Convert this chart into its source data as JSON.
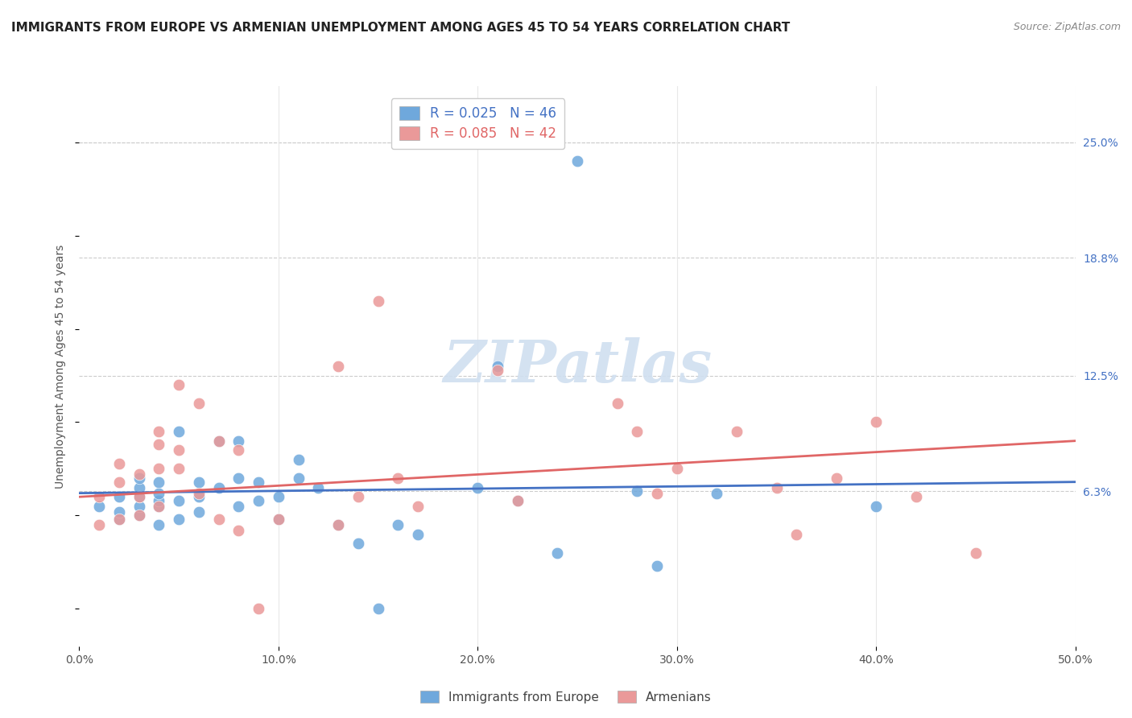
{
  "title": "IMMIGRANTS FROM EUROPE VS ARMENIAN UNEMPLOYMENT AMONG AGES 45 TO 54 YEARS CORRELATION CHART",
  "source": "Source: ZipAtlas.com",
  "ylabel": "Unemployment Among Ages 45 to 54 years",
  "xlim": [
    0.0,
    0.5
  ],
  "ylim": [
    -0.02,
    0.28
  ],
  "xtick_labels": [
    "0.0%",
    "10.0%",
    "20.0%",
    "30.0%",
    "40.0%",
    "50.0%"
  ],
  "xtick_vals": [
    0.0,
    0.1,
    0.2,
    0.3,
    0.4,
    0.5
  ],
  "ytick_labels_right": [
    "6.3%",
    "12.5%",
    "18.8%",
    "25.0%"
  ],
  "ytick_vals_right": [
    0.063,
    0.125,
    0.188,
    0.25
  ],
  "grid_color": "#cccccc",
  "background_color": "#ffffff",
  "watermark": "ZIPatlas",
  "watermark_color": "#d0dff0",
  "blue_color": "#6fa8dc",
  "pink_color": "#ea9999",
  "blue_line_color": "#4472c4",
  "pink_line_color": "#e06666",
  "legend_blue_r": "0.025",
  "legend_blue_n": "46",
  "legend_pink_r": "0.085",
  "legend_pink_n": "42",
  "blue_scatter_x": [
    0.01,
    0.02,
    0.02,
    0.02,
    0.03,
    0.03,
    0.03,
    0.03,
    0.03,
    0.04,
    0.04,
    0.04,
    0.04,
    0.04,
    0.05,
    0.05,
    0.05,
    0.06,
    0.06,
    0.06,
    0.07,
    0.07,
    0.08,
    0.08,
    0.08,
    0.09,
    0.09,
    0.1,
    0.1,
    0.11,
    0.11,
    0.12,
    0.13,
    0.14,
    0.15,
    0.16,
    0.17,
    0.2,
    0.21,
    0.22,
    0.24,
    0.28,
    0.29,
    0.32,
    0.4,
    0.25
  ],
  "blue_scatter_y": [
    0.055,
    0.048,
    0.052,
    0.06,
    0.05,
    0.055,
    0.06,
    0.065,
    0.07,
    0.045,
    0.055,
    0.058,
    0.062,
    0.068,
    0.048,
    0.058,
    0.095,
    0.052,
    0.06,
    0.068,
    0.09,
    0.065,
    0.055,
    0.07,
    0.09,
    0.058,
    0.068,
    0.06,
    0.048,
    0.07,
    0.08,
    0.065,
    0.045,
    0.035,
    0.0,
    0.045,
    0.04,
    0.065,
    0.13,
    0.058,
    0.03,
    0.063,
    0.023,
    0.062,
    0.055,
    0.24
  ],
  "pink_scatter_x": [
    0.01,
    0.01,
    0.02,
    0.02,
    0.02,
    0.03,
    0.03,
    0.03,
    0.04,
    0.04,
    0.04,
    0.04,
    0.05,
    0.05,
    0.05,
    0.06,
    0.06,
    0.07,
    0.07,
    0.08,
    0.08,
    0.09,
    0.1,
    0.13,
    0.13,
    0.14,
    0.15,
    0.16,
    0.17,
    0.21,
    0.22,
    0.27,
    0.28,
    0.29,
    0.3,
    0.33,
    0.35,
    0.36,
    0.38,
    0.4,
    0.42,
    0.45
  ],
  "pink_scatter_y": [
    0.045,
    0.06,
    0.048,
    0.068,
    0.078,
    0.05,
    0.06,
    0.072,
    0.055,
    0.075,
    0.088,
    0.095,
    0.075,
    0.085,
    0.12,
    0.062,
    0.11,
    0.048,
    0.09,
    0.042,
    0.085,
    0.0,
    0.048,
    0.13,
    0.045,
    0.06,
    0.165,
    0.07,
    0.055,
    0.128,
    0.058,
    0.11,
    0.095,
    0.062,
    0.075,
    0.095,
    0.065,
    0.04,
    0.07,
    0.1,
    0.06,
    0.03
  ],
  "blue_trend_x": [
    0.0,
    0.5
  ],
  "blue_trend_y": [
    0.062,
    0.068
  ],
  "pink_trend_x": [
    0.0,
    0.5
  ],
  "pink_trend_y": [
    0.06,
    0.09
  ],
  "bottom_legend_labels": [
    "Immigrants from Europe",
    "Armenians"
  ],
  "title_fontsize": 11,
  "axis_label_fontsize": 10,
  "tick_fontsize": 10,
  "source_fontsize": 9
}
